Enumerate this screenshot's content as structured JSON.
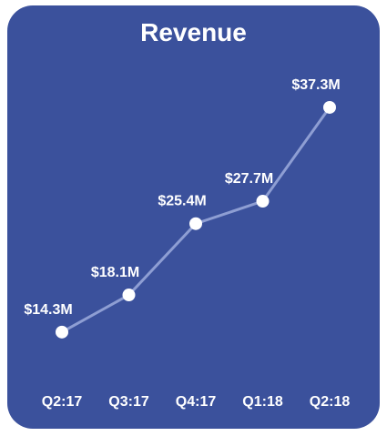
{
  "chart_data": {
    "type": "line",
    "title": "Revenue",
    "categories": [
      "Q2:17",
      "Q3:17",
      "Q4:17",
      "Q1:18",
      "Q2:18"
    ],
    "series": [
      {
        "values": [
          14.3,
          18.1,
          25.4,
          27.7,
          37.3
        ],
        "labels": [
          "$14.3M",
          "$18.1M",
          "$25.4M",
          "$27.7M",
          "$37.3M"
        ]
      }
    ],
    "ylim": [
      10,
      40
    ],
    "grid": false,
    "colors": {
      "background": "#3b519c",
      "line": "#8e9ed3",
      "point": "#ffffff",
      "text": "#ffffff"
    }
  }
}
